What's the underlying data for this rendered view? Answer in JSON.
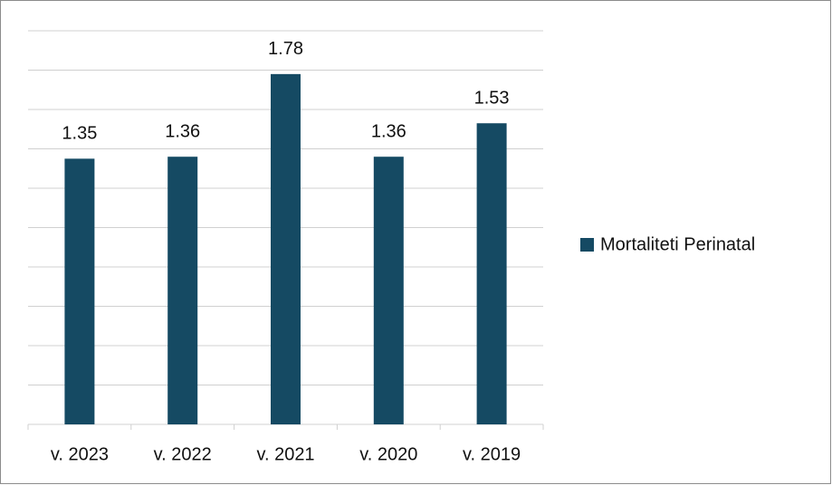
{
  "chart_data": {
    "type": "bar",
    "categories": [
      "v. 2023",
      "v. 2022",
      "v. 2021",
      "v. 2020",
      "v. 2019"
    ],
    "series": [
      {
        "name": "Mortaliteti Perinatal",
        "color": "#154a63",
        "values": [
          1.35,
          1.36,
          1.78,
          1.36,
          1.53
        ]
      }
    ],
    "ylim": [
      0,
      2
    ],
    "yticks": [
      0,
      0.2,
      0.4,
      0.6,
      0.8,
      1,
      1.2,
      1.4,
      1.6,
      1.8,
      2
    ],
    "grid": true,
    "legend": "right"
  }
}
